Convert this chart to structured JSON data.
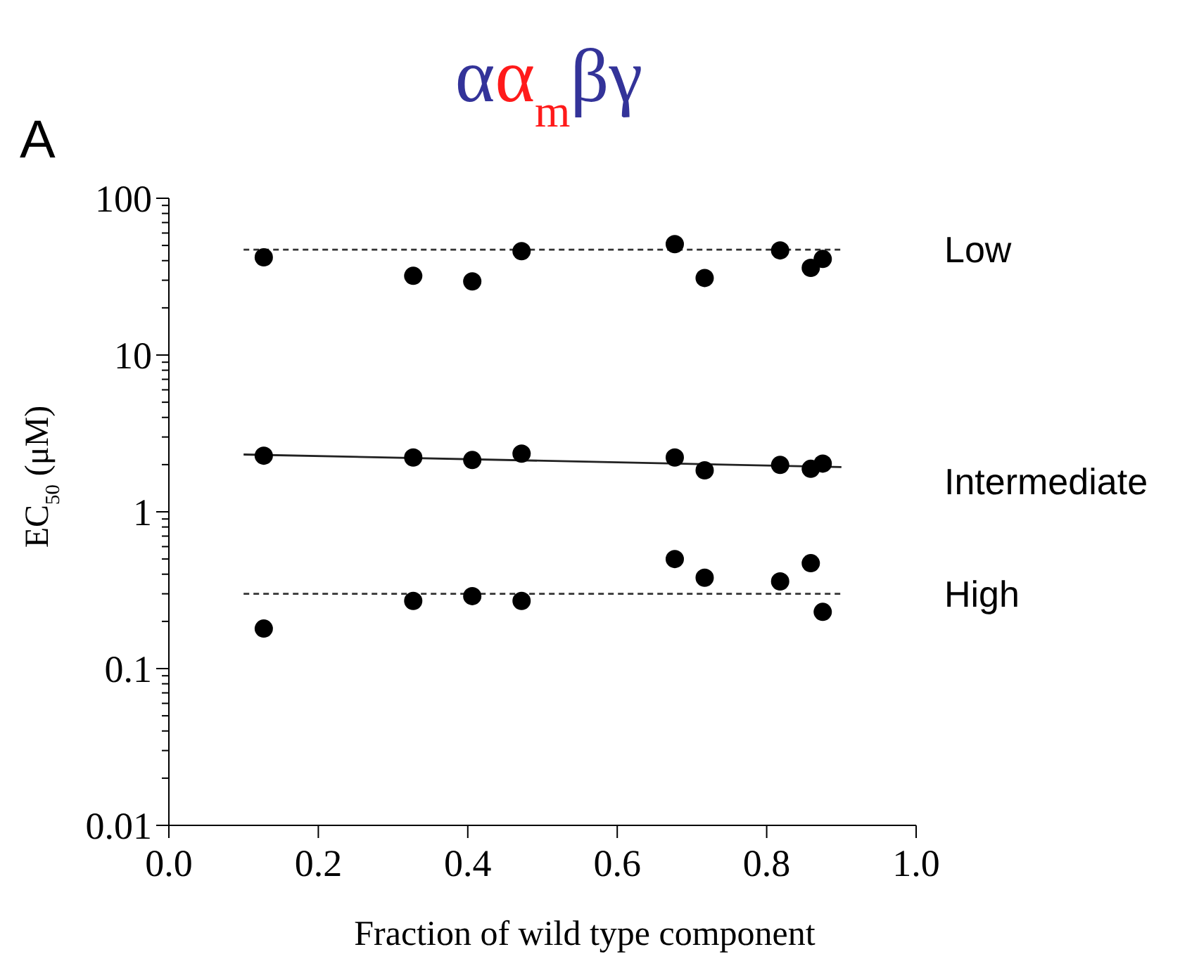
{
  "chart_data": {
    "type": "scatter",
    "title": "αα$_{m}$βγ",
    "xlabel": "Fraction of wild type component",
    "ylabel": "EC$_{50}$ (μM)",
    "log": "y",
    "grid": false,
    "marker": "circle",
    "xlim": [
      0,
      1
    ],
    "ylim": [
      0.01,
      100
    ],
    "xticks": [
      {
        "value": 0,
        "label": "0.0"
      },
      {
        "value": 0.2,
        "label": "0.2"
      },
      {
        "value": 0.4,
        "label": "0.4"
      },
      {
        "value": 0.6,
        "label": "0.6"
      },
      {
        "value": 0.8,
        "label": "0.8"
      },
      {
        "value": 1,
        "label": "1.0"
      }
    ],
    "yticks": [
      0.01,
      {
        "value": 0.02,
        "label": null
      },
      {
        "value": 0.03,
        "label": null
      },
      {
        "value": 0.04,
        "label": null
      },
      {
        "value": 0.05,
        "label": null
      },
      {
        "value": 0.06,
        "label": null
      },
      {
        "value": 0.07,
        "label": null
      },
      {
        "value": 0.08,
        "label": null
      },
      {
        "value": 0.09,
        "label": null
      },
      0.1,
      {
        "value": 0.2,
        "label": null
      },
      {
        "value": 0.3,
        "label": null
      },
      {
        "value": 0.4,
        "label": null
      },
      {
        "value": 0.5,
        "label": null
      },
      {
        "value": 0.6,
        "label": null
      },
      {
        "value": 0.7,
        "label": null
      },
      {
        "value": 0.8,
        "label": null
      },
      {
        "value": 0.9,
        "label": null
      },
      1,
      {
        "value": 2,
        "label": null
      },
      {
        "value": 3,
        "label": null
      },
      {
        "value": 4,
        "label": null
      },
      {
        "value": 5,
        "label": null
      },
      {
        "value": 6,
        "label": null
      },
      {
        "value": 7,
        "label": null
      },
      {
        "value": 8,
        "label": null
      },
      {
        "value": 9,
        "label": null
      },
      10,
      {
        "value": 20,
        "label": null
      },
      {
        "value": 30,
        "label": null
      },
      {
        "value": 40,
        "label": null
      },
      {
        "value": 50,
        "label": null
      },
      {
        "value": 60,
        "label": null
      },
      {
        "value": 70,
        "label": null
      },
      {
        "value": 80,
        "label": null
      },
      {
        "value": 90,
        "label": null
      },
      100
    ],
    "series": [
      {
        "color": "#000000",
        "x": [
          0.127,
          0.327,
          0.406,
          0.472,
          0.677,
          0.717,
          0.818,
          0.859,
          0.875
        ],
        "values": [
          42,
          32,
          29.5,
          46,
          51,
          31,
          46.5,
          36,
          41
        ]
      },
      {
        "color": "#000000",
        "x": [
          0.127,
          0.327,
          0.406,
          0.472,
          0.677,
          0.717,
          0.818,
          0.859,
          0.875
        ],
        "values": [
          2.28,
          2.22,
          2.14,
          2.35,
          2.22,
          1.84,
          1.99,
          1.88,
          2.03
        ]
      },
      {
        "color": "#000000",
        "x": [
          0.127,
          0.327,
          0.406,
          0.472,
          0.677,
          0.717,
          0.818,
          0.859,
          0.875
        ],
        "values": [
          0.18,
          0.27,
          0.29,
          0.27,
          0.5,
          0.38,
          0.36,
          0.47,
          0.23
        ]
      },
      {
        "type": "line",
        "color": "#333333",
        "line_style": "dashed",
        "marker": "none",
        "x": [
          0.1,
          0.9
        ],
        "values": [
          47,
          47
        ]
      },
      {
        "type": "line",
        "color": "#222222",
        "line_style": "solid",
        "marker": "none",
        "x": [
          0.1,
          0.9
        ],
        "values": [
          2.32,
          1.93
        ]
      },
      {
        "type": "line",
        "color": "#333333",
        "line_style": "dashed",
        "marker": "none",
        "x": [
          0.1,
          0.9
        ],
        "values": [
          0.3,
          0.3
        ]
      }
    ],
    "annotations": [
      "A",
      "Low",
      "Intermediate",
      "High"
    ]
  }
}
